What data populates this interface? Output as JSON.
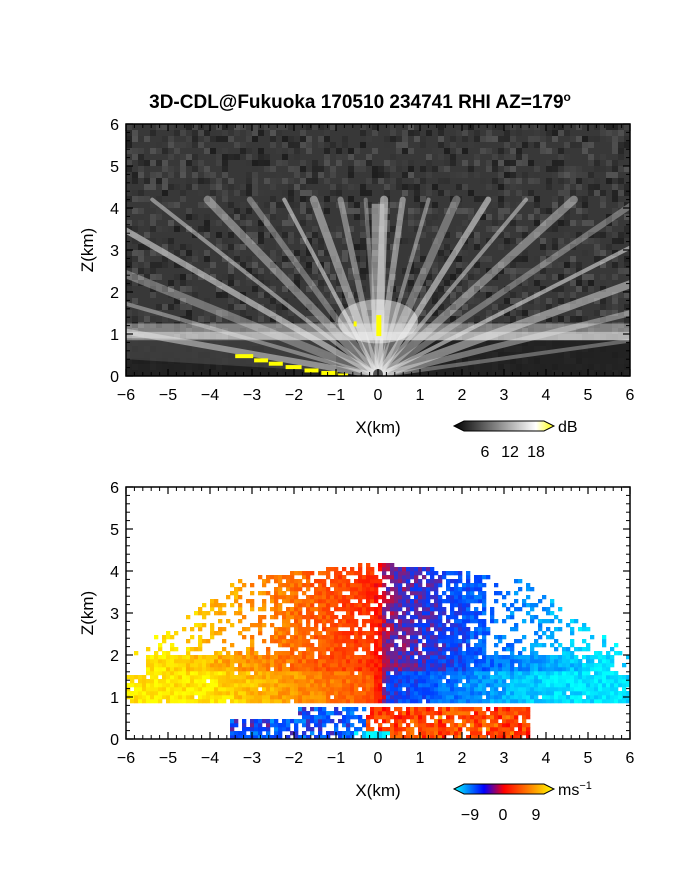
{
  "title": "3D-CDL@Fukuoka 170510 234741 RHI AZ=179",
  "title_superscript": "o",
  "chart_data": [
    {
      "type": "heatmap",
      "name": "backscatter-intensity",
      "xlabel": "X(km)",
      "ylabel": "Z(km)",
      "xlim": [
        -6,
        6
      ],
      "ylim": [
        0,
        6
      ],
      "xticks": [
        "-6",
        "-5",
        "-4",
        "-3",
        "-2",
        "-1",
        "0",
        "1",
        "2",
        "3",
        "4",
        "5",
        "6"
      ],
      "yticks": [
        "0",
        "1",
        "2",
        "3",
        "4",
        "5",
        "6"
      ],
      "grid": false,
      "colorbar": {
        "unit": "dB",
        "ticks": [
          "6",
          "12",
          "18"
        ],
        "colors": [
          "#000000",
          "#ffffff",
          "#ffff00"
        ]
      },
      "boundary_layer_top_km": 0.85,
      "ray_angles_deg": [
        8,
        14,
        20,
        27,
        34,
        42,
        50,
        58,
        66,
        74,
        82,
        88,
        94,
        102,
        110,
        118,
        126,
        134,
        142,
        150,
        158,
        164,
        170
      ],
      "ray_max_height_km": 4.2,
      "highlight_color": "#ffff00"
    },
    {
      "type": "heatmap",
      "name": "radial-velocity",
      "xlabel": "X(km)",
      "ylabel": "Z(km)",
      "xlim": [
        -6,
        6
      ],
      "ylim": [
        0,
        6
      ],
      "xticks": [
        "-6",
        "-5",
        "-4",
        "-3",
        "-2",
        "-1",
        "0",
        "1",
        "2",
        "3",
        "4",
        "5",
        "6"
      ],
      "yticks": [
        "0",
        "1",
        "2",
        "3",
        "4",
        "5",
        "6"
      ],
      "grid": false,
      "colorbar": {
        "unit": "ms",
        "unit_superscript": "−1",
        "ticks": [
          "−9",
          "0",
          "9"
        ],
        "range": [
          -12,
          12
        ],
        "colors": [
          "#00ffff",
          "#0000ff",
          "#ff0000",
          "#ffff00"
        ]
      },
      "data_extent": {
        "main_layer_km": [
          0.85,
          4.1
        ],
        "lower_layer_km": [
          0.0,
          0.8
        ],
        "x_range_km": [
          -6,
          6
        ]
      }
    }
  ]
}
